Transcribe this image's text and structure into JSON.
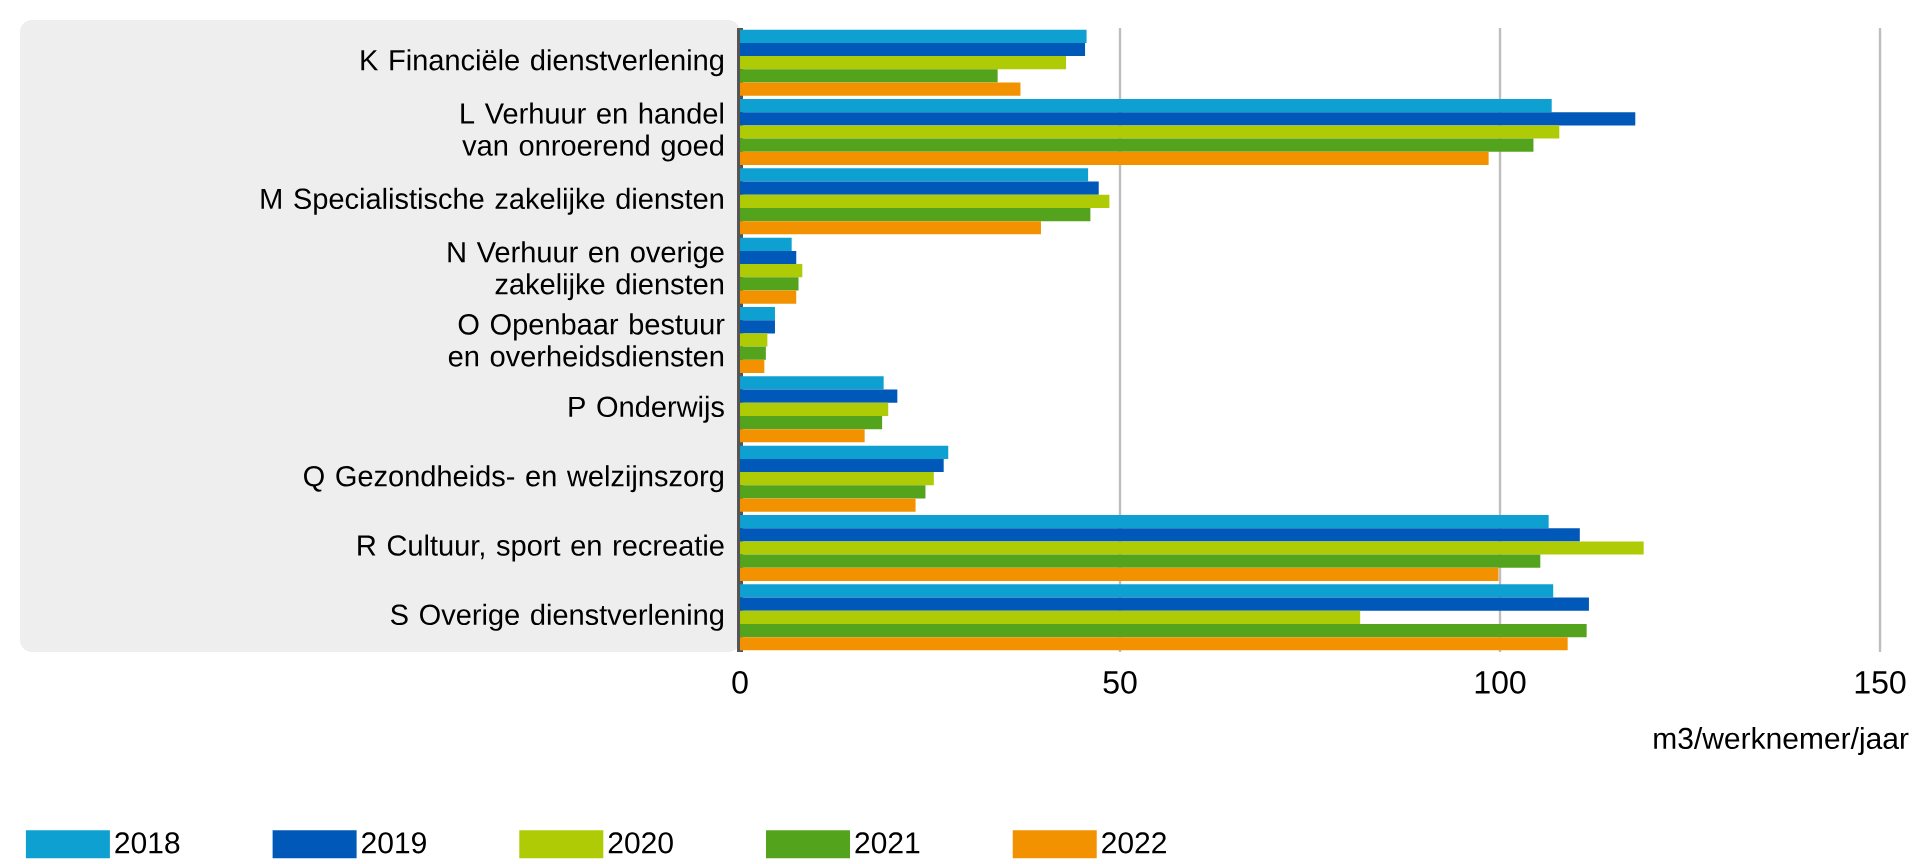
{
  "chart_data": {
    "type": "bar",
    "orientation": "horizontal",
    "categories": [
      "K Financiële dienstverlening",
      "L Verhuur en handel van onroerend goed",
      "M Specialistische zakelijke diensten",
      "N Verhuur en overige zakelijke diensten",
      "O Openbaar bestuur en overheidsdiensten",
      "P Onderwijs",
      "Q Gezondheids- en welzijnszorg",
      "R Cultuur, sport en recreatie",
      "S Overige dienstverlening"
    ],
    "series": [
      {
        "name": "2018",
        "color": "#0ea0d0",
        "values": [
          45.6,
          106.8,
          45.8,
          6.8,
          4.6,
          18.9,
          27.4,
          106.4,
          107.0
        ]
      },
      {
        "name": "2019",
        "color": "#0058b8",
        "values": [
          45.4,
          117.8,
          47.2,
          7.4,
          4.6,
          20.7,
          26.8,
          110.5,
          111.7
        ]
      },
      {
        "name": "2020",
        "color": "#afcb05",
        "values": [
          42.9,
          107.8,
          48.6,
          8.2,
          3.6,
          19.5,
          25.5,
          118.9,
          81.6
        ]
      },
      {
        "name": "2021",
        "color": "#53a31d",
        "values": [
          33.9,
          104.4,
          46.1,
          7.7,
          3.4,
          18.7,
          24.4,
          105.3,
          111.4
        ]
      },
      {
        "name": "2022",
        "color": "#f39200",
        "values": [
          36.9,
          98.5,
          39.6,
          7.4,
          3.2,
          16.4,
          23.1,
          99.8,
          108.9
        ]
      }
    ],
    "xlabel": "m3/werknemer/jaar",
    "xlim": [
      0,
      150
    ],
    "xticks": [
      0,
      50,
      100,
      150
    ],
    "grid": "x",
    "legend": "bottom"
  }
}
